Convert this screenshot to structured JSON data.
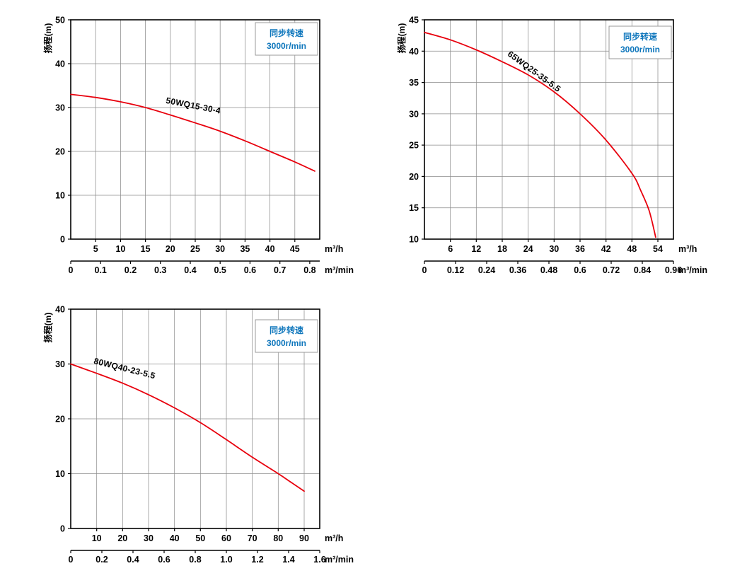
{
  "page": {
    "background": "#ffffff"
  },
  "colors": {
    "curve": "#e8000d",
    "legend_text": "#0e76bc",
    "grid": "#8c8c8c",
    "axis": "#000000",
    "legend_border": "#999999"
  },
  "legend": {
    "line1": "同步转速",
    "line2": "3000r/min"
  },
  "chart_data": [
    {
      "type": "line",
      "title": "50WQ15-30-4",
      "ylabel": "扬程(m)",
      "xlabel_primary": "m³/h",
      "xlabel_secondary": "m³/min",
      "xlim": [
        0,
        50
      ],
      "ylim": [
        0,
        50
      ],
      "y_ticks": [
        0,
        10,
        20,
        30,
        40,
        50
      ],
      "x_ticks_primary": [
        5,
        10,
        15,
        20,
        25,
        30,
        35,
        40,
        45
      ],
      "x_ticks_secondary": [
        "0",
        "0.1",
        "0.2",
        "0.3",
        "0.4",
        "0.5",
        "0.6",
        "0.7",
        "0.8"
      ],
      "secondary_scale": 60,
      "grid": true,
      "legend_position": "top-right",
      "legend_inset_top": 4,
      "series": [
        {
          "name": "50WQ15-30-4",
          "color": "#e8000d",
          "points": [
            [
              0,
              33
            ],
            [
              5,
              32.3
            ],
            [
              10,
              31.3
            ],
            [
              15,
              30
            ],
            [
              20,
              28.3
            ],
            [
              25,
              26.5
            ],
            [
              30,
              24.6
            ],
            [
              35,
              22.4
            ],
            [
              40,
              20
            ],
            [
              45,
              17.6
            ],
            [
              49,
              15.5
            ]
          ]
        }
      ],
      "curve_label": {
        "text": "50WQ15-30-4",
        "x": 24.5,
        "y": 29.8,
        "rotate": 11
      }
    },
    {
      "type": "line",
      "title": "65WQ25-35-5.5",
      "ylabel": "扬程(m)",
      "xlabel_primary": "m³/h",
      "xlabel_secondary": "m³/min",
      "xlim": [
        0,
        57.6
      ],
      "ylim": [
        10,
        45
      ],
      "y_ticks": [
        10,
        15,
        20,
        25,
        30,
        35,
        40,
        45
      ],
      "x_ticks_primary": [
        6,
        12,
        18,
        24,
        30,
        36,
        42,
        48,
        54
      ],
      "x_ticks_secondary": [
        "0",
        "0.12",
        "0.24",
        "0.36",
        "0.48",
        "0.6",
        "0.72",
        "0.84",
        "0.96"
      ],
      "secondary_scale": 60,
      "grid": true,
      "legend_position": "top-right",
      "legend_inset_top": 9,
      "series": [
        {
          "name": "65WQ25-35-5.5",
          "color": "#e8000d",
          "points": [
            [
              0,
              43
            ],
            [
              6,
              41.8
            ],
            [
              12,
              40.2
            ],
            [
              18,
              38.3
            ],
            [
              24,
              36.2
            ],
            [
              30,
              33.5
            ],
            [
              36,
              30
            ],
            [
              42,
              25.8
            ],
            [
              48,
              20.5
            ],
            [
              50,
              17.8
            ],
            [
              52,
              14.5
            ],
            [
              53.5,
              10.3
            ]
          ]
        }
      ],
      "curve_label": {
        "text": "65WQ25-35-5.5",
        "x": 25,
        "y": 36.4,
        "rotate": 36
      }
    },
    {
      "type": "line",
      "title": "80WQ40-23-5.5",
      "ylabel": "扬程(m)",
      "xlabel_primary": "m³/h",
      "xlabel_secondary": "m³/min",
      "xlim": [
        0,
        96
      ],
      "ylim": [
        0,
        40
      ],
      "y_ticks": [
        0,
        10,
        20,
        30,
        40
      ],
      "x_ticks_primary": [
        10,
        20,
        30,
        40,
        50,
        60,
        70,
        80,
        90
      ],
      "x_ticks_secondary": [
        "0",
        "0.2",
        "0.4",
        "0.6",
        "0.8",
        "1.0",
        "1.2",
        "1.4",
        "1.6"
      ],
      "secondary_scale": 60,
      "grid": true,
      "legend_position": "top-right",
      "legend_inset_top": 15,
      "series": [
        {
          "name": "80WQ40-23-5.5",
          "color": "#e8000d",
          "points": [
            [
              0,
              30
            ],
            [
              10,
              28.3
            ],
            [
              20,
              26.5
            ],
            [
              30,
              24.4
            ],
            [
              40,
              22
            ],
            [
              50,
              19.3
            ],
            [
              60,
              16.2
            ],
            [
              70,
              13
            ],
            [
              80,
              10
            ],
            [
              85,
              8.4
            ],
            [
              90,
              6.8
            ]
          ]
        }
      ],
      "curve_label": {
        "text": "80WQ40-23-5.5",
        "x": 20.5,
        "y": 28.7,
        "rotate": 14
      }
    }
  ]
}
